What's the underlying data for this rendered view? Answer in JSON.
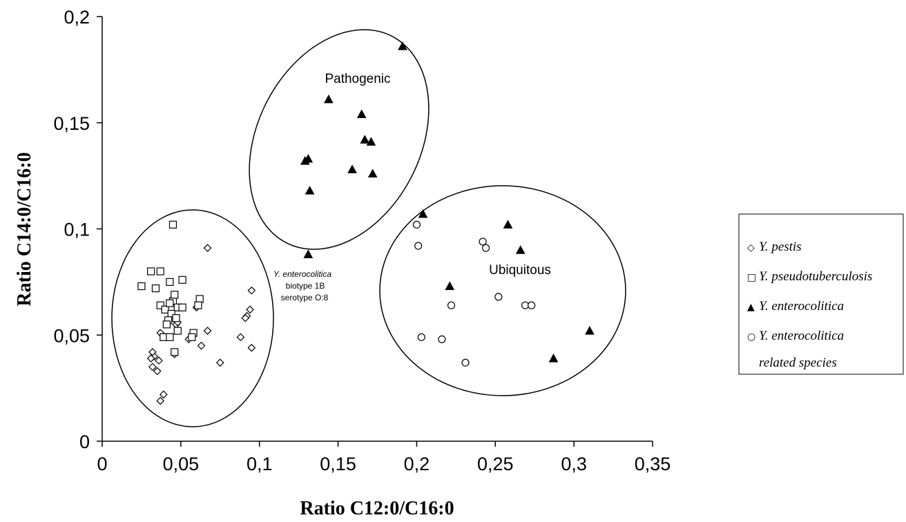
{
  "chart_data": {
    "type": "scatter",
    "xlabel": "Ratio C12:0/C16:0",
    "ylabel": "Ratio C14:0/C16:0",
    "xlim": [
      0,
      0.35
    ],
    "ylim": [
      0,
      0.2
    ],
    "x_ticks": [
      "0",
      "0,05",
      "0,1",
      "0,15",
      "0,2",
      "0,25",
      "0,3",
      "0,35"
    ],
    "y_ticks": [
      "0",
      "0,05",
      "0,1",
      "0,15",
      "0,2"
    ],
    "grid": false,
    "legend_position": "right",
    "group_labels": [
      "Pathogenic",
      "Ubiquitous"
    ],
    "annotation": [
      "Y. enterocolitica",
      "biotype 1B",
      "serotype O:8"
    ],
    "series": [
      {
        "name": "Y. pestis",
        "marker": "diamond-open",
        "points": [
          [
            0.067,
            0.091
          ],
          [
            0.095,
            0.071
          ],
          [
            0.094,
            0.062
          ],
          [
            0.092,
            0.059
          ],
          [
            0.091,
            0.058
          ],
          [
            0.088,
            0.049
          ],
          [
            0.095,
            0.044
          ],
          [
            0.075,
            0.037
          ],
          [
            0.067,
            0.052
          ],
          [
            0.063,
            0.045
          ],
          [
            0.06,
            0.063
          ],
          [
            0.058,
            0.05
          ],
          [
            0.055,
            0.048
          ],
          [
            0.047,
            0.055
          ],
          [
            0.048,
            0.056
          ],
          [
            0.046,
            0.041
          ],
          [
            0.037,
            0.051
          ],
          [
            0.036,
            0.038
          ],
          [
            0.035,
            0.033
          ],
          [
            0.033,
            0.04
          ],
          [
            0.032,
            0.042
          ],
          [
            0.031,
            0.039
          ],
          [
            0.032,
            0.035
          ],
          [
            0.039,
            0.022
          ],
          [
            0.037,
            0.019
          ]
        ]
      },
      {
        "name": "Y. pseudotuberculosis",
        "marker": "square-open",
        "points": [
          [
            0.045,
            0.102
          ],
          [
            0.031,
            0.08
          ],
          [
            0.037,
            0.08
          ],
          [
            0.025,
            0.073
          ],
          [
            0.034,
            0.072
          ],
          [
            0.051,
            0.076
          ],
          [
            0.062,
            0.067
          ],
          [
            0.061,
            0.064
          ],
          [
            0.043,
            0.075
          ],
          [
            0.037,
            0.064
          ],
          [
            0.04,
            0.062
          ],
          [
            0.045,
            0.066
          ],
          [
            0.043,
            0.065
          ],
          [
            0.048,
            0.063
          ],
          [
            0.046,
            0.069
          ],
          [
            0.051,
            0.063
          ],
          [
            0.044,
            0.06
          ],
          [
            0.042,
            0.057
          ],
          [
            0.041,
            0.055
          ],
          [
            0.047,
            0.058
          ],
          [
            0.039,
            0.049
          ],
          [
            0.043,
            0.049
          ],
          [
            0.048,
            0.052
          ],
          [
            0.046,
            0.042
          ],
          [
            0.058,
            0.051
          ],
          [
            0.057,
            0.049
          ]
        ]
      },
      {
        "name": "Y. enterocolitica",
        "marker": "triangle-filled",
        "points": [
          [
            0.191,
            0.186
          ],
          [
            0.144,
            0.161
          ],
          [
            0.165,
            0.154
          ],
          [
            0.167,
            0.142
          ],
          [
            0.171,
            0.141
          ],
          [
            0.131,
            0.133
          ],
          [
            0.129,
            0.132
          ],
          [
            0.159,
            0.128
          ],
          [
            0.172,
            0.126
          ],
          [
            0.132,
            0.118
          ],
          [
            0.131,
            0.088
          ],
          [
            0.204,
            0.107
          ],
          [
            0.258,
            0.102
          ],
          [
            0.266,
            0.09
          ],
          [
            0.221,
            0.073
          ],
          [
            0.31,
            0.052
          ],
          [
            0.287,
            0.039
          ]
        ]
      },
      {
        "name": "Y. enterocolitica related species",
        "marker": "circle-open",
        "points": [
          [
            0.2,
            0.102
          ],
          [
            0.201,
            0.092
          ],
          [
            0.242,
            0.094
          ],
          [
            0.244,
            0.091
          ],
          [
            0.222,
            0.064
          ],
          [
            0.252,
            0.068
          ],
          [
            0.269,
            0.064
          ],
          [
            0.273,
            0.064
          ],
          [
            0.203,
            0.049
          ],
          [
            0.216,
            0.048
          ],
          [
            0.231,
            0.037
          ]
        ]
      }
    ],
    "legend_entries": [
      {
        "label": "Y. pestis",
        "glyph": "◇"
      },
      {
        "label": "Y. pseudotuberculosis",
        "glyph": "□"
      },
      {
        "label": "Y. enterocolitica",
        "glyph": "▲"
      },
      {
        "label": "Y. enterocolitica",
        "label2": "related species",
        "glyph": "○"
      }
    ]
  }
}
